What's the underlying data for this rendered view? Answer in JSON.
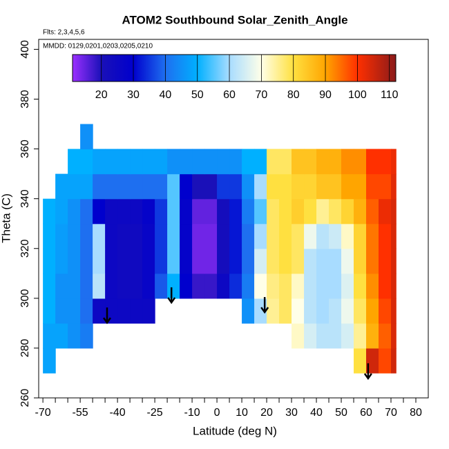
{
  "chart_data": {
    "type": "heatmap",
    "title": "ATOM2 Southbound Solar_Zenith_Angle",
    "subtitle": "Flts: 2,3,4,5,6",
    "annotation": "MMDD: 0129,0201,0203,0205,0210",
    "xlabel": "Latitude (deg N)",
    "ylabel": "Theta (C)",
    "xlim": [
      -71.7,
      85
    ],
    "ylim": [
      260,
      404
    ],
    "xticks": [
      -70,
      -55,
      -40,
      -25,
      -10,
      0,
      10,
      20,
      30,
      40,
      50,
      60,
      70,
      80
    ],
    "xticks_minor": [
      -65,
      -60,
      -50,
      -45,
      -35,
      -30,
      -20,
      -15,
      -5,
      5,
      15,
      25,
      35,
      45,
      55,
      65,
      75
    ],
    "yticks": [
      260,
      280,
      300,
      320,
      340,
      360,
      380,
      400
    ],
    "x_edges": [
      -70,
      -65,
      -60,
      -55,
      -50,
      -45,
      -40,
      -35,
      -30,
      -25,
      -20,
      -15,
      -10,
      -5,
      0,
      5,
      10,
      15,
      20,
      25,
      30,
      35,
      40,
      45,
      50,
      55,
      60,
      65,
      70,
      72
    ],
    "y_edges": [
      270,
      280,
      290,
      300,
      310,
      320,
      330,
      340,
      350,
      360,
      370
    ],
    "z": [
      [
        48,
        null,
        null,
        null,
        null,
        null,
        null,
        null,
        null,
        null,
        null,
        null,
        null,
        null,
        null,
        null,
        null,
        null,
        null,
        null,
        null,
        null,
        null,
        null,
        null,
        80,
        105,
        98,
        105
      ],
      [
        48,
        48,
        45,
        42,
        null,
        null,
        null,
        null,
        null,
        null,
        null,
        null,
        null,
        null,
        null,
        null,
        null,
        null,
        null,
        null,
        72,
        65,
        62,
        62,
        65,
        75,
        88,
        96,
        104
      ],
      [
        50,
        45,
        45,
        40,
        25,
        25,
        25,
        25,
        25,
        null,
        null,
        null,
        null,
        null,
        null,
        null,
        45,
        60,
        75,
        78,
        70,
        62,
        60,
        62,
        68,
        78,
        90,
        98,
        104
      ],
      [
        50,
        45,
        45,
        40,
        62,
        25,
        24,
        24,
        27,
        38,
        50,
        30,
        18,
        18,
        25,
        34,
        42,
        70,
        76,
        78,
        72,
        62,
        60,
        60,
        66,
        80,
        92,
        100,
        104
      ],
      [
        50,
        47,
        45,
        40,
        60,
        25,
        24,
        24,
        27,
        35,
        55,
        28,
        14,
        14,
        22,
        32,
        40,
        65,
        78,
        80,
        78,
        62,
        60,
        60,
        68,
        82,
        94,
        100,
        104
      ],
      [
        50,
        47,
        45,
        40,
        60,
        25,
        24,
        24,
        27,
        35,
        55,
        28,
        14,
        14,
        22,
        32,
        40,
        60,
        78,
        80,
        78,
        68,
        62,
        64,
        72,
        82,
        94,
        100,
        104
      ],
      [
        50,
        48,
        45,
        40,
        30,
        25,
        25,
        25,
        28,
        35,
        55,
        28,
        15,
        15,
        22,
        32,
        42,
        55,
        78,
        80,
        83,
        80,
        75,
        78,
        82,
        88,
        96,
        102,
        104
      ],
      [
        null,
        48,
        48,
        48,
        40,
        40,
        40,
        40,
        40,
        40,
        55,
        30,
        20,
        20,
        35,
        35,
        45,
        60,
        80,
        80,
        82,
        82,
        85,
        85,
        90,
        90,
        98,
        98,
        103
      ],
      [
        null,
        null,
        50,
        50,
        48,
        48,
        48,
        48,
        48,
        48,
        45,
        45,
        45,
        45,
        45,
        45,
        50,
        50,
        78,
        78,
        85,
        85,
        88,
        88,
        92,
        92,
        100,
        100,
        102
      ],
      [
        null,
        null,
        null,
        45,
        null,
        null,
        null,
        null,
        null,
        null,
        null,
        null,
        null,
        null,
        null,
        null,
        null,
        null,
        null,
        null,
        null,
        null,
        null,
        null,
        null,
        null,
        null,
        null,
        null
      ]
    ],
    "colorscale": [
      [
        11,
        "#9b30ff"
      ],
      [
        20,
        "#1a10b8"
      ],
      [
        30,
        "#0000cd"
      ],
      [
        40,
        "#1e6ff0"
      ],
      [
        50,
        "#00b0ff"
      ],
      [
        60,
        "#a8dcff"
      ],
      [
        70,
        "#ffffe8"
      ],
      [
        80,
        "#ffe040"
      ],
      [
        90,
        "#ffa500"
      ],
      [
        100,
        "#ff3000"
      ],
      [
        112,
        "#8b1a1a"
      ]
    ],
    "zlim": [
      11,
      112
    ],
    "zticks": [
      20,
      30,
      40,
      50,
      60,
      70,
      80,
      90,
      100,
      110
    ],
    "arrows": {
      "x": [
        -44.2,
        -18.3,
        19.2,
        60.8
      ],
      "y": [
        290.2,
        298.3,
        294.4,
        267.8
      ]
    }
  }
}
